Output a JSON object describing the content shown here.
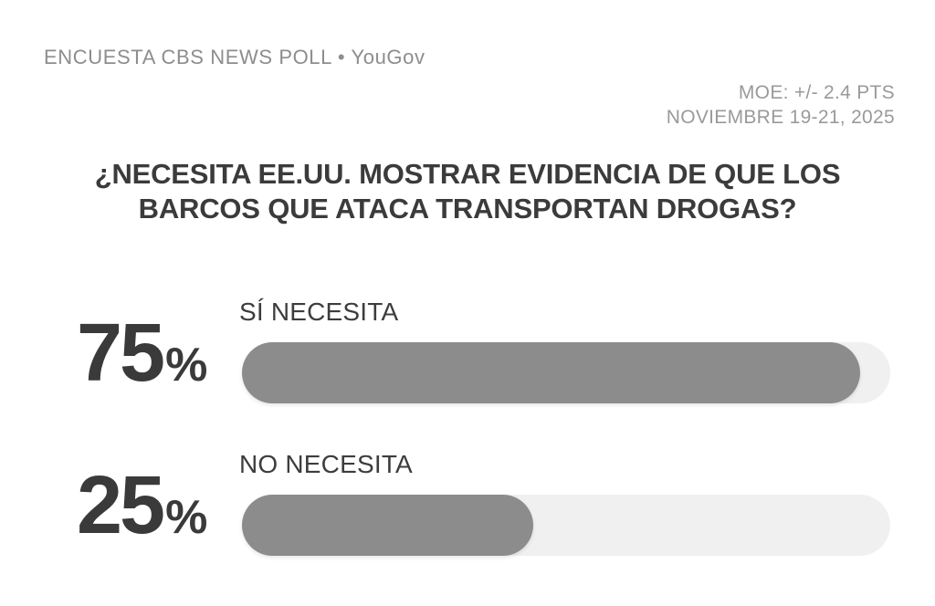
{
  "header": {
    "source": "ENCUESTA CBS NEWS POLL • YouGov",
    "moe": "MOE: +/- 2.4 PTS",
    "date": "NOVIEMBRE 19-21, 2025"
  },
  "title": {
    "line1": "¿NECESITA EE.UU. MOSTRAR EVIDENCIA DE QUE LOS",
    "line2": "BARCOS QUE ATACA TRANSPORTAN DROGAS?"
  },
  "colors": {
    "background": "#ffffff",
    "bar_fill": "#8c8c8c",
    "bar_track": "#f0f0f0",
    "text_dark": "#3b3b3b",
    "text_source": "#8d8d8d",
    "text_moe": "#9a9a9a"
  },
  "chart_data": {
    "type": "bar",
    "orientation": "horizontal",
    "title": "¿NECESITA EE.UU. MOSTRAR EVIDENCIA DE QUE LOS BARCOS QUE ATACA TRANSPORTAN DROGAS?",
    "source": "ENCUESTA CBS NEWS POLL • YouGov",
    "margin_of_error": "MOE: +/- 2.4 PTS",
    "date_range": "NOVIEMBRE 19-21, 2025",
    "unit": "%",
    "categories": [
      "SÍ NECESITA",
      "NO NECESITA"
    ],
    "values": [
      75,
      25
    ],
    "grid": false,
    "legend": false,
    "bars": [
      {
        "label": "SÍ NECESITA",
        "value": 75,
        "value_text": "75",
        "display_fill_percent": 95.3
      },
      {
        "label": "NO NECESITA",
        "value": 25,
        "value_text": "25",
        "display_fill_percent": 44.9
      }
    ]
  }
}
